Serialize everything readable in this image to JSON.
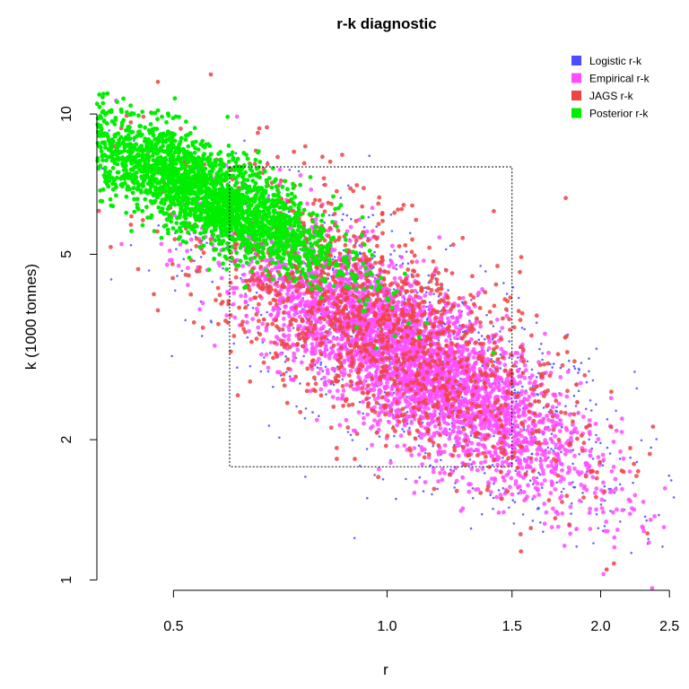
{
  "chart_data": {
    "type": "scatter",
    "title": "r-k diagnostic",
    "xlabel": "r",
    "ylabel": "k (1000 tonnes)",
    "x_scale": "log",
    "y_scale": "log",
    "xlim": [
      0.39,
      2.55
    ],
    "ylim": [
      0.95,
      14.2
    ],
    "x_ticks": [
      0.5,
      1.0,
      1.5,
      2.0,
      2.5
    ],
    "x_tick_labels": [
      "0.5",
      "1.0",
      "1.5",
      "2.0",
      "2.5"
    ],
    "y_ticks": [
      1,
      2,
      5,
      10
    ],
    "y_tick_labels": [
      "1",
      "2",
      "5",
      "10"
    ],
    "grid": false,
    "legend_position": "top-right",
    "prior_box": {
      "r_range": [
        0.6,
        1.5
      ],
      "k_range": [
        1.75,
        7.7
      ],
      "line_style": "dotted"
    },
    "series": [
      {
        "name": "Logistic r-k",
        "color": "#4d4dff",
        "marker": "small-dot",
        "center": {
          "r": 1.1,
          "k": 3.0
        },
        "log_spread": {
          "r": 0.35,
          "k": 0.4
        },
        "log_correlation": -0.75,
        "approx_points": 1200
      },
      {
        "name": "Empirical r-k",
        "color": "#ff4dff",
        "marker": "dot",
        "center": {
          "r": 1.07,
          "k": 3.0
        },
        "log_spread": {
          "r": 0.28,
          "k": 0.32
        },
        "log_correlation": -0.8,
        "approx_points": 3500
      },
      {
        "name": "JAGS r-k",
        "color": "#ee4444",
        "marker": "dot",
        "center": {
          "r": 0.95,
          "k": 3.6
        },
        "log_spread": {
          "r": 0.33,
          "k": 0.38
        },
        "log_correlation": -0.72,
        "approx_points": 1400
      },
      {
        "name": "Posterior r-k",
        "color": "#00ee00",
        "marker": "dot",
        "center": {
          "r": 0.55,
          "k": 6.8
        },
        "log_spread": {
          "r": 0.22,
          "k": 0.2
        },
        "log_correlation": -0.8,
        "approx_points": 2500
      }
    ]
  }
}
